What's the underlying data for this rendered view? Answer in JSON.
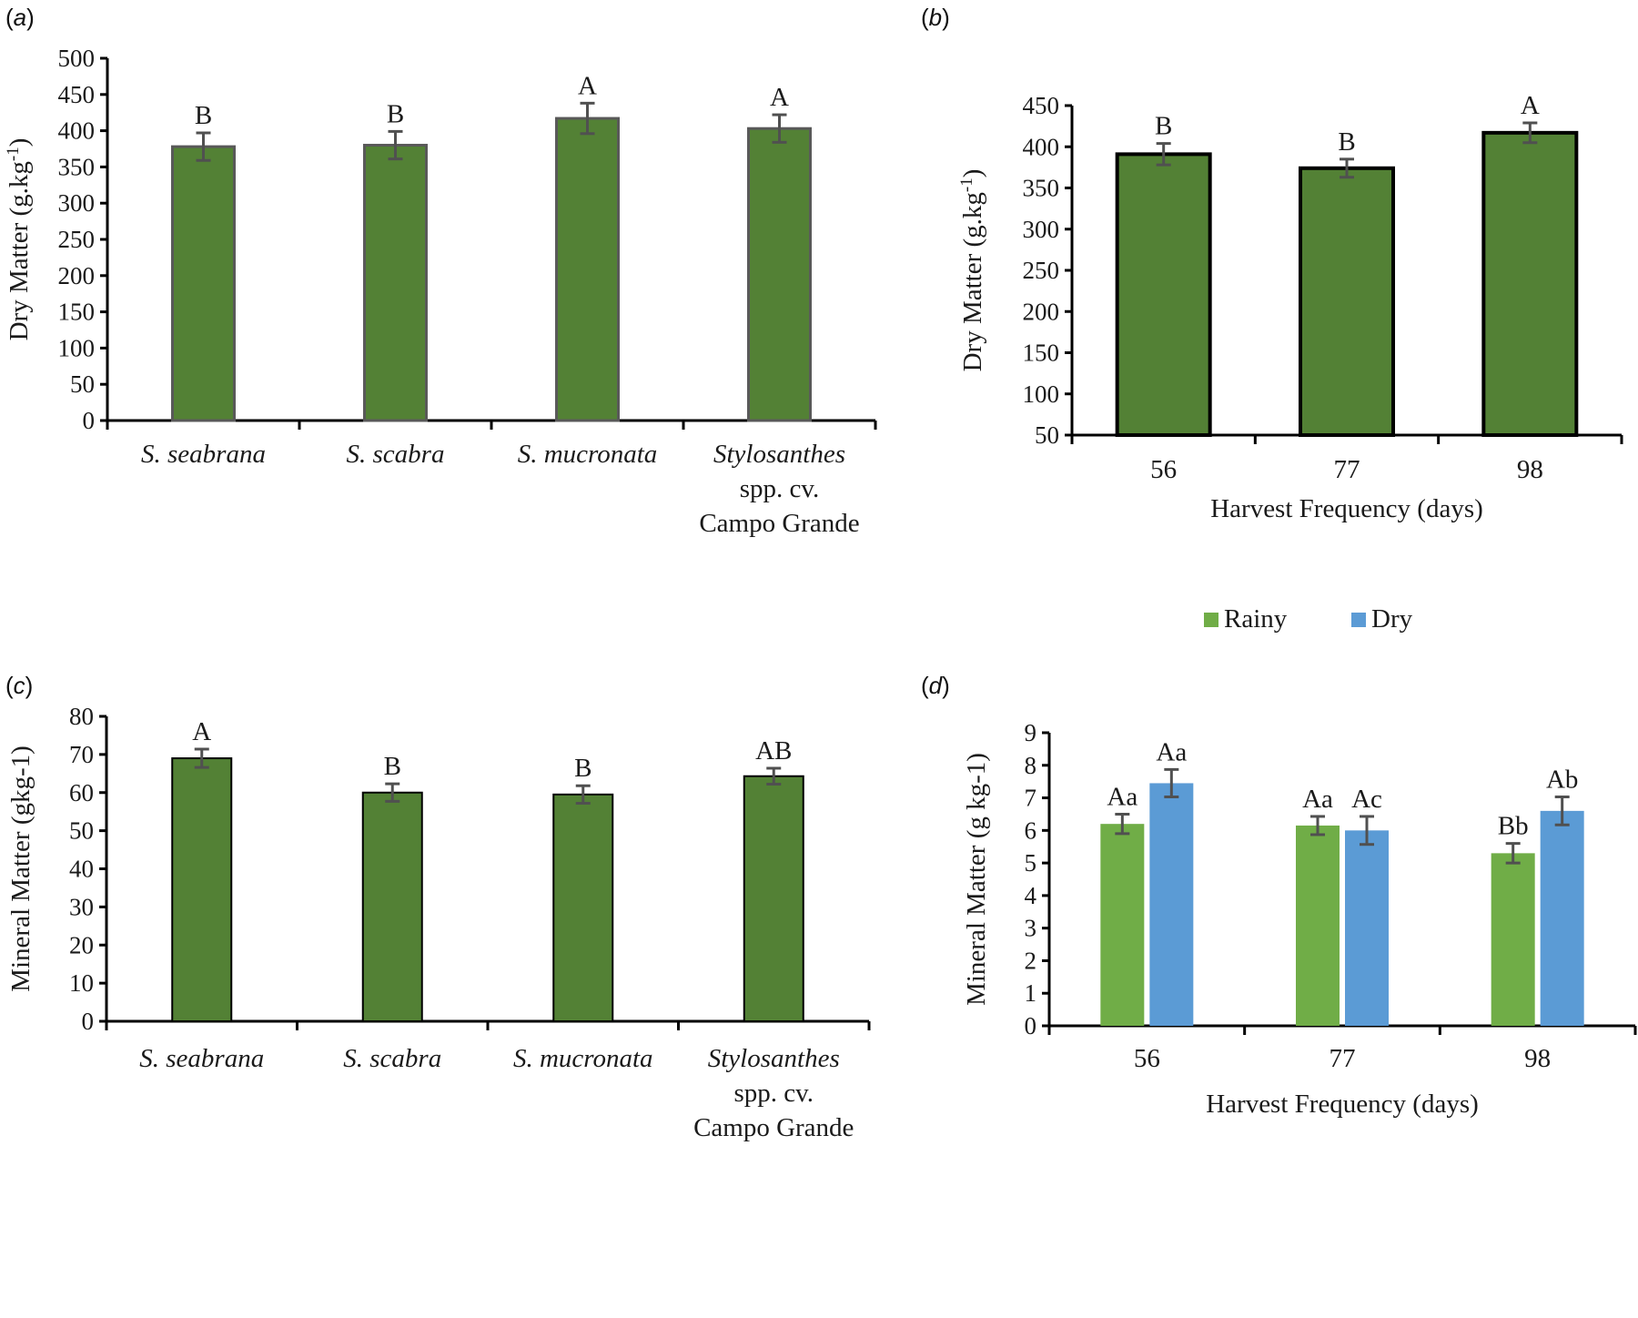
{
  "panels": {
    "a": {
      "label": "a"
    },
    "b": {
      "label": "b"
    },
    "c": {
      "label": "c"
    },
    "d": {
      "label": "d"
    }
  },
  "colors": {
    "bar_green_dark": "#538135",
    "bar_green_light": "#70ad47",
    "bar_blue": "#5b9bd5",
    "error_bar": "#505050",
    "axis": "#000000"
  },
  "chart_data": [
    {
      "id": "a",
      "type": "bar",
      "title": "",
      "xlabel": "",
      "ylabel": "Dry Matter (g.kg-1)",
      "ylabel_parts": {
        "main": "Dry Matter  (g.kg",
        "sup": "-1",
        "end": ")"
      },
      "ylim": [
        0,
        500
      ],
      "yticks": [
        0,
        50,
        100,
        150,
        200,
        250,
        300,
        350,
        400,
        450,
        500
      ],
      "categories": [
        {
          "lines": [
            "S. seabrana"
          ],
          "italic": true
        },
        {
          "lines": [
            "S. scabra"
          ],
          "italic": true
        },
        {
          "lines": [
            "S. mucronata"
          ],
          "italic": true
        },
        {
          "lines": [
            "Stylosanthes",
            "spp. cv.",
            "Campo Grande"
          ],
          "italic": false,
          "first_italic": true
        }
      ],
      "series": [
        {
          "name": "Dry Matter",
          "values": [
            378,
            380,
            417,
            403
          ],
          "errors": [
            19,
            19,
            21,
            19
          ],
          "letters": [
            "B",
            "B",
            "A",
            "A"
          ]
        }
      ],
      "grid": false,
      "legend": "none"
    },
    {
      "id": "b",
      "type": "bar",
      "title": "",
      "xlabel": "Harvest Frequency  (days)",
      "ylabel": "Dry Matter (g.kg-1)",
      "ylabel_parts": {
        "main": "Dry Matter  (g.kg",
        "sup": "-1",
        "end": ")"
      },
      "ylim": [
        50,
        450
      ],
      "yticks": [
        50,
        100,
        150,
        200,
        250,
        300,
        350,
        400,
        450
      ],
      "categories": [
        {
          "lines": [
            "56"
          ],
          "italic": false
        },
        {
          "lines": [
            "77"
          ],
          "italic": false
        },
        {
          "lines": [
            "98"
          ],
          "italic": false
        }
      ],
      "series": [
        {
          "name": "Dry Matter",
          "values": [
            391,
            374,
            417
          ],
          "errors": [
            13,
            11,
            12
          ],
          "letters": [
            "B",
            "B",
            "A"
          ]
        }
      ],
      "grid": false,
      "legend": "none"
    },
    {
      "id": "c",
      "type": "bar",
      "title": "",
      "xlabel": "",
      "ylabel": "Mineral Matter  (gkg-1)",
      "ylabel_parts": {
        "main": "Mineral Matter  (gkg-1)",
        "sup": "",
        "end": ""
      },
      "ylim": [
        0,
        80
      ],
      "yticks": [
        0,
        10,
        20,
        30,
        40,
        50,
        60,
        70,
        80
      ],
      "categories": [
        {
          "lines": [
            "S. seabrana"
          ],
          "italic": true
        },
        {
          "lines": [
            "S. scabra"
          ],
          "italic": true
        },
        {
          "lines": [
            "S. mucronata"
          ],
          "italic": true
        },
        {
          "lines": [
            "Stylosanthes",
            "spp. cv.",
            "Campo Grande"
          ],
          "italic": false,
          "first_italic": true
        }
      ],
      "series": [
        {
          "name": "Mineral Matter",
          "values": [
            69,
            60,
            59.5,
            64.3
          ],
          "errors": [
            2.4,
            2.3,
            2.3,
            2.1
          ],
          "letters": [
            "A",
            "B",
            "B",
            "AB"
          ]
        }
      ],
      "grid": false,
      "legend": "none"
    },
    {
      "id": "d",
      "type": "bar",
      "title": "",
      "xlabel": "Harvest Frequency  (days)",
      "ylabel": "Mineral Matter  (g kg-1)",
      "ylabel_parts": {
        "main": "Mineral Matter  (g kg-1)",
        "sup": "",
        "end": ""
      },
      "ylim": [
        0,
        9
      ],
      "yticks": [
        0,
        1,
        2,
        3,
        4,
        5,
        6,
        7,
        8,
        9
      ],
      "categories": [
        {
          "lines": [
            "56"
          ],
          "italic": false
        },
        {
          "lines": [
            "77"
          ],
          "italic": false
        },
        {
          "lines": [
            "98"
          ],
          "italic": false
        }
      ],
      "series": [
        {
          "name": "Rainy",
          "values": [
            6.2,
            6.15,
            5.3
          ],
          "errors": [
            0.3,
            0.28,
            0.3
          ],
          "letters": [
            "Aa",
            "Aa",
            "Bb"
          ]
        },
        {
          "name": "Dry",
          "values": [
            7.45,
            6.0,
            6.6
          ],
          "errors": [
            0.42,
            0.43,
            0.43
          ],
          "letters": [
            "Aa",
            "Ac",
            "Ab"
          ]
        }
      ],
      "grid": false,
      "legend": "top-center"
    }
  ]
}
